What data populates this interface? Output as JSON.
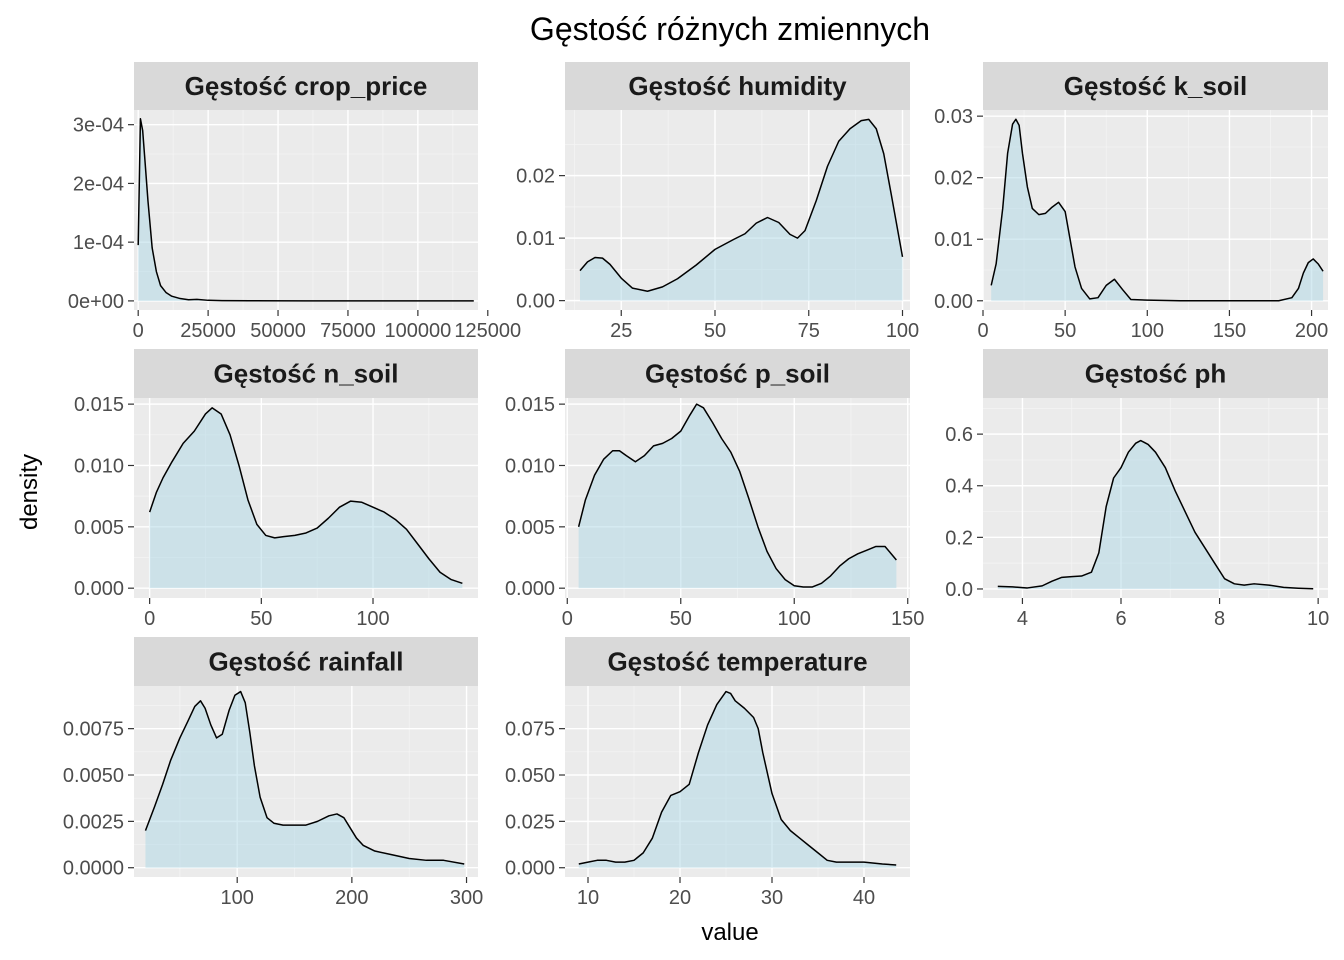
{
  "title": "Gęstość różnych zmiennych",
  "xlabel": "value",
  "ylabel": "density",
  "colors": {
    "fill": "#ADD8E6",
    "line": "#000000",
    "panel": "#EBEBEB",
    "strip": "#D9D9D9"
  },
  "chart_data": {
    "type": "area",
    "layout": "facet-wrap 3 columns, free scales",
    "grid": true,
    "panels": [
      {
        "label": "Gęstość  crop_price",
        "xlim": [
          -1500,
          121500
        ],
        "ylim": [
          -1.55e-05,
          0.000325
        ],
        "xticks": [
          0,
          25000,
          50000,
          75000,
          100000,
          125000
        ],
        "xtick_labels": [
          "0",
          "25000",
          "50000",
          "75000",
          "100000",
          "125000"
        ],
        "yticks": [
          0,
          0.0001,
          0.0002,
          0.0003
        ],
        "ytick_labels": [
          "0e+00",
          "1e-04",
          "2e-04",
          "3e-04"
        ],
        "x": [
          0,
          800,
          1600,
          2400,
          3500,
          5000,
          6500,
          8000,
          10000,
          12000,
          15000,
          18000,
          21000,
          25000,
          30000,
          40000,
          60000,
          80000,
          100000,
          120000
        ],
        "y": [
          9.5e-05,
          0.00031,
          0.00029,
          0.00024,
          0.00017,
          9e-05,
          5e-05,
          2.6e-05,
          1.4e-05,
          8e-06,
          4e-06,
          2e-06,
          2.6e-06,
          1e-06,
          5e-07,
          2e-07,
          1e-07,
          1e-07,
          1e-07,
          0
        ]
      },
      {
        "label": "Gęstość  humidity",
        "xlim": [
          10,
          102
        ],
        "ylim": [
          -0.0015,
          0.0305
        ],
        "xticks": [
          25,
          50,
          75,
          100
        ],
        "xtick_labels": [
          "25",
          "50",
          "75",
          "100"
        ],
        "yticks": [
          0,
          0.01,
          0.02
        ],
        "ytick_labels": [
          "0.00",
          "0.01",
          "0.02"
        ],
        "x": [
          14,
          16,
          18,
          20,
          22,
          25,
          28,
          32,
          36,
          40,
          45,
          50,
          55,
          58,
          61,
          64,
          67,
          70,
          72,
          74,
          77,
          80,
          83,
          86,
          89,
          91,
          93,
          95,
          97,
          100
        ],
        "y": [
          0.0048,
          0.0062,
          0.0069,
          0.0068,
          0.0058,
          0.0036,
          0.002,
          0.0015,
          0.0022,
          0.0035,
          0.0057,
          0.0082,
          0.0098,
          0.0107,
          0.0124,
          0.0133,
          0.0125,
          0.0106,
          0.01,
          0.0112,
          0.016,
          0.0215,
          0.0255,
          0.0275,
          0.0288,
          0.029,
          0.0275,
          0.0235,
          0.017,
          0.007
        ]
      },
      {
        "label": "Gęstość  k_soil",
        "xlim": [
          0,
          210
        ],
        "ylim": [
          -0.0015,
          0.031
        ],
        "xticks": [
          0,
          50,
          100,
          150,
          200
        ],
        "xtick_labels": [
          "0",
          "50",
          "100",
          "150",
          "200"
        ],
        "yticks": [
          0,
          0.01,
          0.02,
          0.03
        ],
        "ytick_labels": [
          "0.00",
          "0.01",
          "0.02",
          "0.03"
        ],
        "x": [
          5,
          8,
          12,
          15,
          18,
          20,
          22,
          24,
          27,
          30,
          34,
          38,
          42,
          46,
          50,
          53,
          56,
          60,
          65,
          70,
          75,
          80,
          85,
          90,
          100,
          120,
          150,
          180,
          188,
          192,
          195,
          198,
          201,
          204,
          207
        ],
        "y": [
          0.0025,
          0.006,
          0.015,
          0.024,
          0.0287,
          0.0295,
          0.0285,
          0.024,
          0.0185,
          0.015,
          0.014,
          0.0142,
          0.0152,
          0.016,
          0.0145,
          0.01,
          0.0055,
          0.002,
          0.0003,
          0.0005,
          0.0025,
          0.0035,
          0.0018,
          0.0002,
          0.0001,
          0,
          0,
          0,
          0.0005,
          0.002,
          0.0045,
          0.0062,
          0.0068,
          0.006,
          0.0048
        ]
      },
      {
        "label": "Gęstość  n_soil",
        "xlim": [
          -7,
          147
        ],
        "ylim": [
          -0.0008,
          0.0155
        ],
        "xticks": [
          0,
          50,
          100
        ],
        "xtick_labels": [
          "0",
          "50",
          "100"
        ],
        "yticks": [
          0,
          0.005,
          0.01,
          0.015
        ],
        "ytick_labels": [
          "0.000",
          "0.005",
          "0.010",
          "0.015"
        ],
        "x": [
          0,
          3,
          6,
          10,
          15,
          20,
          25,
          28,
          32,
          36,
          40,
          44,
          48,
          52,
          56,
          60,
          65,
          70,
          75,
          80,
          85,
          90,
          95,
          100,
          105,
          110,
          115,
          120,
          125,
          130,
          135,
          140
        ],
        "y": [
          0.0062,
          0.0078,
          0.009,
          0.0103,
          0.0118,
          0.0128,
          0.0142,
          0.0147,
          0.0142,
          0.0125,
          0.01,
          0.0072,
          0.0052,
          0.0043,
          0.0041,
          0.0042,
          0.0043,
          0.0045,
          0.0049,
          0.0057,
          0.0066,
          0.0071,
          0.007,
          0.0066,
          0.0062,
          0.0056,
          0.0048,
          0.0036,
          0.0024,
          0.0013,
          0.0007,
          0.0004
        ]
      },
      {
        "label": "Gęstość  p_soil",
        "xlim": [
          -1,
          151
        ],
        "ylim": [
          -0.0008,
          0.0155
        ],
        "xticks": [
          0,
          50,
          100,
          150
        ],
        "xtick_labels": [
          "0",
          "50",
          "100",
          "150"
        ],
        "yticks": [
          0,
          0.005,
          0.01,
          0.015
        ],
        "ytick_labels": [
          "0.000",
          "0.005",
          "0.010",
          "0.015"
        ],
        "x": [
          5,
          8,
          12,
          16,
          20,
          23,
          26,
          30,
          34,
          38,
          42,
          46,
          50,
          54,
          57,
          60,
          64,
          68,
          72,
          76,
          80,
          84,
          88,
          92,
          96,
          100,
          104,
          108,
          112,
          116,
          120,
          124,
          128,
          132,
          136,
          140,
          145
        ],
        "y": [
          0.005,
          0.0072,
          0.0092,
          0.0105,
          0.0112,
          0.0112,
          0.0108,
          0.0103,
          0.0108,
          0.0116,
          0.0118,
          0.0122,
          0.0128,
          0.0141,
          0.015,
          0.0147,
          0.0135,
          0.0122,
          0.0111,
          0.0095,
          0.0073,
          0.005,
          0.003,
          0.0016,
          0.0007,
          0.0002,
          0.0001,
          0.0001,
          0.0004,
          0.001,
          0.0018,
          0.0024,
          0.0028,
          0.0031,
          0.0034,
          0.0034,
          0.0023
        ]
      },
      {
        "label": "Gęstość  ph",
        "xlim": [
          3.2,
          10.2
        ],
        "ylim": [
          -0.035,
          0.74
        ],
        "xticks": [
          4,
          6,
          8,
          10
        ],
        "xtick_labels": [
          "4",
          "6",
          "8",
          "10"
        ],
        "yticks": [
          0,
          0.2,
          0.4,
          0.6
        ],
        "ytick_labels": [
          "0.0",
          "0.2",
          "0.4",
          "0.6"
        ],
        "x": [
          3.5,
          3.8,
          4.1,
          4.4,
          4.6,
          4.8,
          5.0,
          5.2,
          5.4,
          5.55,
          5.7,
          5.85,
          6.0,
          6.15,
          6.3,
          6.4,
          6.55,
          6.7,
          6.9,
          7.1,
          7.3,
          7.5,
          7.7,
          7.9,
          8.1,
          8.3,
          8.5,
          8.7,
          9.0,
          9.3,
          9.6,
          9.9
        ],
        "y": [
          0.01,
          0.008,
          0.004,
          0.012,
          0.03,
          0.045,
          0.048,
          0.05,
          0.065,
          0.14,
          0.32,
          0.43,
          0.47,
          0.53,
          0.565,
          0.575,
          0.56,
          0.53,
          0.47,
          0.38,
          0.3,
          0.22,
          0.16,
          0.1,
          0.04,
          0.02,
          0.015,
          0.02,
          0.015,
          0.006,
          0.003,
          0.001
        ]
      },
      {
        "label": "Gęstość  rainfall",
        "xlim": [
          10,
          310
        ],
        "ylim": [
          -0.0005,
          0.0098
        ],
        "xticks": [
          100,
          200,
          300
        ],
        "xtick_labels": [
          "100",
          "200",
          "300"
        ],
        "yticks": [
          0,
          0.0025,
          0.005,
          0.0075
        ],
        "ytick_labels": [
          "0.0000",
          "0.0025",
          "0.0050",
          "0.0075"
        ],
        "x": [
          20,
          28,
          35,
          42,
          50,
          57,
          63,
          68,
          72,
          77,
          82,
          87,
          93,
          98,
          103,
          107,
          111,
          115,
          120,
          126,
          132,
          140,
          150,
          160,
          170,
          180,
          187,
          193,
          198,
          204,
          210,
          220,
          235,
          250,
          265,
          280,
          298
        ],
        "y": [
          0.002,
          0.0033,
          0.0045,
          0.0058,
          0.007,
          0.0079,
          0.0087,
          0.009,
          0.0086,
          0.0077,
          0.007,
          0.0072,
          0.0085,
          0.0093,
          0.0095,
          0.0089,
          0.0073,
          0.0055,
          0.0038,
          0.0027,
          0.0024,
          0.0023,
          0.0023,
          0.0023,
          0.0025,
          0.0028,
          0.0029,
          0.0027,
          0.0022,
          0.0016,
          0.0012,
          0.0009,
          0.0007,
          0.0005,
          0.0004,
          0.0004,
          0.0002
        ]
      },
      {
        "label": "Gęstość  temperature",
        "xlim": [
          7.5,
          45
        ],
        "ylim": [
          -0.005,
          0.098
        ],
        "xticks": [
          10,
          20,
          30,
          40
        ],
        "xtick_labels": [
          "10",
          "20",
          "30",
          "40"
        ],
        "yticks": [
          0,
          0.025,
          0.05,
          0.075
        ],
        "ytick_labels": [
          "0.000",
          "0.025",
          "0.050",
          "0.075"
        ],
        "x": [
          9,
          10,
          11,
          12,
          13,
          14,
          15,
          16,
          17,
          18,
          19,
          20,
          21,
          22,
          23,
          24,
          25,
          25.5,
          26,
          27,
          28,
          28.5,
          29,
          30,
          31,
          32,
          33,
          34,
          35,
          36,
          37,
          38,
          40,
          42,
          43.5
        ],
        "y": [
          0.002,
          0.003,
          0.004,
          0.004,
          0.003,
          0.003,
          0.004,
          0.008,
          0.016,
          0.03,
          0.039,
          0.041,
          0.045,
          0.062,
          0.077,
          0.088,
          0.095,
          0.094,
          0.09,
          0.086,
          0.081,
          0.075,
          0.062,
          0.04,
          0.026,
          0.02,
          0.016,
          0.012,
          0.008,
          0.004,
          0.003,
          0.003,
          0.003,
          0.002,
          0.0015
        ]
      }
    ]
  }
}
